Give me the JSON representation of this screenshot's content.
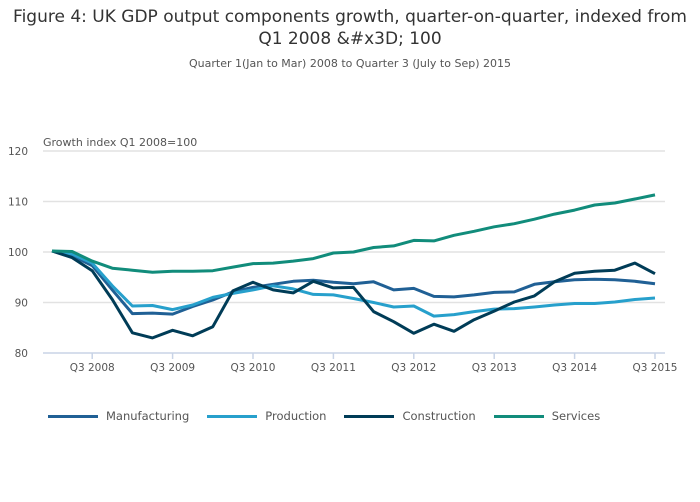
{
  "chart_data": {
    "type": "line",
    "title": "Figure 4: UK GDP output components growth, quarter-on-quarter, indexed from Q1 2008 &#x3D; 100",
    "subtitle": "Quarter 1(Jan to Mar) 2008 to Quarter 3 (July to Sep) 2015",
    "ylabel": "Growth index Q1 2008=100",
    "xlabel": "",
    "x_start": "Q1 2008",
    "x_end": "Q3 2015",
    "x_ticks": [
      "Q3 2008",
      "Q3 2009",
      "Q3 2010",
      "Q3 2011",
      "Q3 2012",
      "Q3 2013",
      "Q3 2014",
      "Q3 2015"
    ],
    "y_ticks": [
      80,
      90,
      100,
      110,
      120
    ],
    "ylim": [
      80,
      120
    ],
    "grid": true,
    "legend_position": "bottom",
    "series": [
      {
        "name": "Manufacturing",
        "color": "#206095",
        "values": [
          100.2,
          99.3,
          97.3,
          92.5,
          87.8,
          87.9,
          87.7,
          89.2,
          90.5,
          92.1,
          93.0,
          93.6,
          94.2,
          94.4,
          94.0,
          93.7,
          94.1,
          92.5,
          92.8,
          91.2,
          91.1,
          91.5,
          92.0,
          92.1,
          93.6,
          94.1,
          94.5,
          94.6,
          94.5,
          94.2,
          93.7
        ]
      },
      {
        "name": "Production",
        "color": "#27a0cc",
        "values": [
          100.2,
          99.6,
          97.8,
          93.3,
          89.3,
          89.4,
          88.6,
          89.5,
          91.0,
          91.8,
          92.5,
          93.3,
          92.7,
          91.6,
          91.5,
          90.8,
          90.0,
          89.1,
          89.3,
          87.3,
          87.6,
          88.2,
          88.7,
          88.8,
          89.1,
          89.5,
          89.8,
          89.8,
          90.1,
          90.6,
          90.9
        ]
      },
      {
        "name": "Construction",
        "color": "#003c57",
        "values": [
          100.2,
          98.9,
          96.3,
          90.6,
          84.0,
          83.0,
          84.5,
          83.4,
          85.2,
          92.3,
          94.0,
          92.5,
          91.9,
          94.2,
          92.9,
          93.0,
          88.2,
          86.2,
          83.9,
          85.7,
          84.3,
          86.6,
          88.3,
          90.1,
          91.3,
          94.1,
          95.8,
          96.2,
          96.4,
          97.8,
          95.7
        ]
      },
      {
        "name": "Services",
        "color": "#118c7b",
        "values": [
          100.2,
          100.1,
          98.2,
          96.8,
          96.4,
          96.0,
          96.2,
          96.2,
          96.3,
          97.0,
          97.7,
          97.8,
          98.2,
          98.7,
          99.8,
          100.0,
          100.9,
          101.2,
          102.3,
          102.2,
          103.3,
          104.1,
          105.0,
          105.6,
          106.5,
          107.5,
          108.3,
          109.3,
          109.7,
          110.5,
          111.3
        ]
      }
    ]
  }
}
